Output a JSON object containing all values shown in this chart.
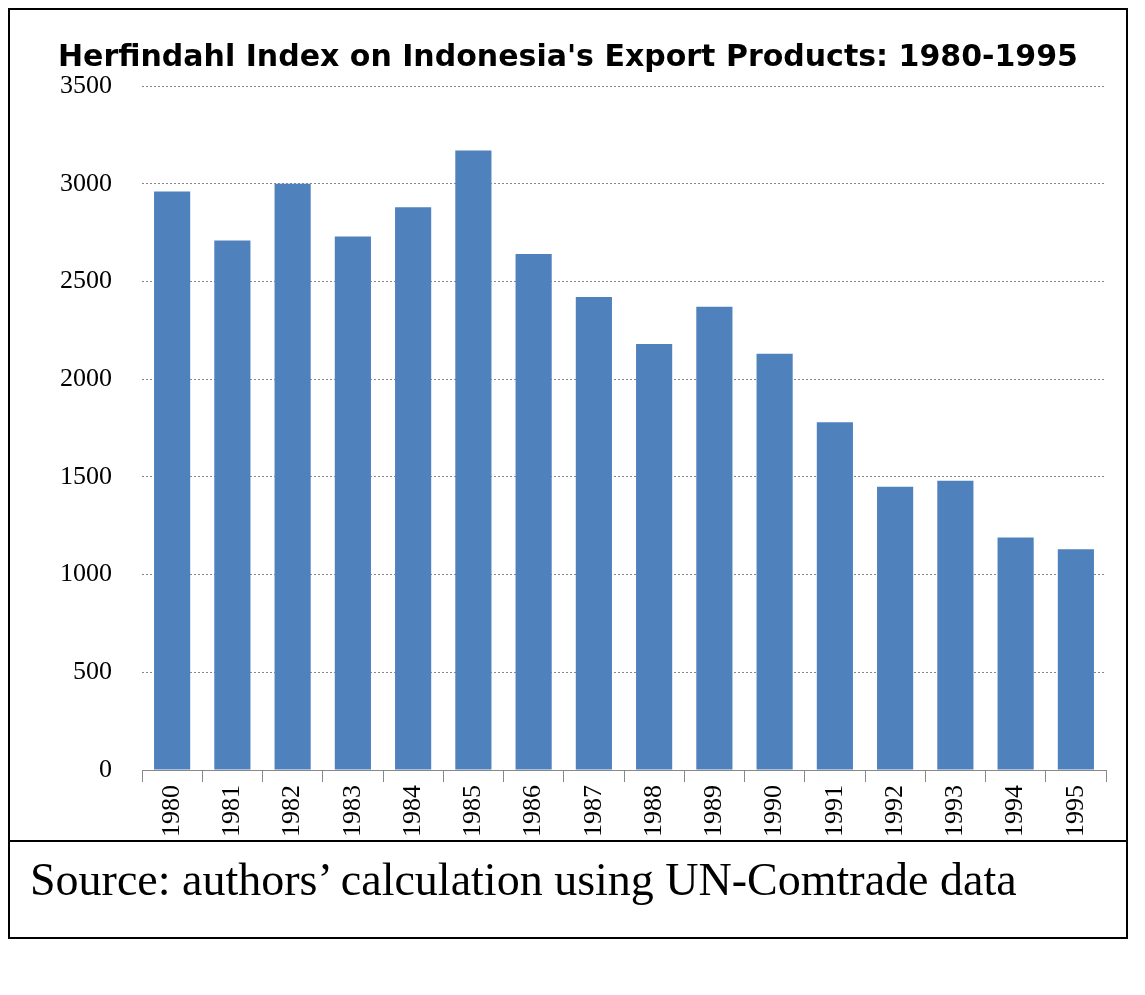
{
  "chart_data": {
    "type": "bar",
    "title": "Herfindahl Index on Indonesia's Export Products: 1980-1995",
    "categories": [
      "1980",
      "1981",
      "1982",
      "1983",
      "1984",
      "1985",
      "1986",
      "1987",
      "1988",
      "1989",
      "1990",
      "1991",
      "1992",
      "1993",
      "1994",
      "1995"
    ],
    "values": [
      2960,
      2710,
      3000,
      2730,
      2880,
      3170,
      2640,
      2420,
      2180,
      2370,
      2130,
      1780,
      1450,
      1480,
      1190,
      1130
    ],
    "color": "#4f81bd",
    "ylim": [
      0,
      3500
    ],
    "yticks": [
      0,
      500,
      1000,
      1500,
      2000,
      2500,
      3000,
      3500
    ],
    "grid": "y",
    "annotations": [
      "Source: authors’ calculation using UN-Comtrade data"
    ]
  }
}
